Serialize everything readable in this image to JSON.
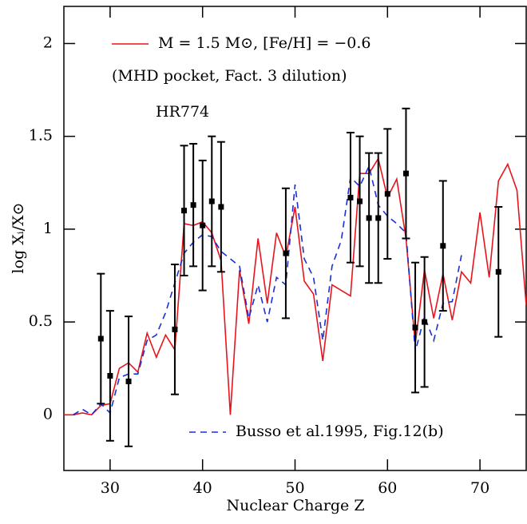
{
  "chart_data": {
    "type": "line",
    "xlabel": "Nuclear Charge Z",
    "ylabel": "log Xᵢ/X⊙",
    "annotations": [
      "(MHD pocket, Fact. 3 dilution)",
      "HR774"
    ],
    "xlim": [
      25,
      75
    ],
    "xticks": [
      30,
      40,
      50,
      60,
      70
    ],
    "ylim": [
      -0.3,
      2.2
    ],
    "yticks": [
      0,
      0.5,
      1,
      1.5,
      2
    ],
    "series": [
      {
        "name": "M = 1.5 M⊙, [Fe/H] = −0.6",
        "color": "#e8141c",
        "dash": false,
        "x": [
          25,
          26,
          27,
          28,
          29,
          30,
          31,
          32,
          33,
          34,
          35,
          36,
          37,
          38,
          39,
          40,
          41,
          42,
          43,
          44,
          45,
          46,
          47,
          48,
          49,
          50,
          51,
          52,
          53,
          54,
          55,
          56,
          57,
          58,
          59,
          60,
          61,
          62,
          63,
          64,
          65,
          66,
          67,
          68,
          69,
          70,
          71,
          72,
          73,
          74,
          75
        ],
        "values": [
          0,
          0,
          0.01,
          0,
          0.05,
          0.06,
          0.25,
          0.28,
          0.23,
          0.44,
          0.31,
          0.43,
          0.35,
          1.03,
          1.02,
          1.04,
          0.98,
          0.83,
          0,
          0.78,
          0.49,
          0.95,
          0.6,
          0.98,
          0.85,
          1.12,
          0.72,
          0.65,
          0.29,
          0.7,
          0.67,
          0.64,
          1.3,
          1.3,
          1.38,
          1.17,
          1.27,
          0.95,
          0.38,
          0.78,
          0.52,
          0.76,
          0.51,
          0.77,
          0.71,
          1.09,
          0.74,
          1.26,
          1.35,
          1.21,
          0.59
        ]
      },
      {
        "name": "Busso et al.1995, Fig.12(b)",
        "color": "#1a2fd6",
        "dash": true,
        "x": [
          26,
          27,
          28,
          29,
          30,
          31,
          32,
          33,
          34,
          35,
          36,
          37,
          38,
          39,
          40,
          41,
          42,
          43,
          44,
          45,
          46,
          47,
          48,
          49,
          50,
          51,
          52,
          53,
          54,
          55,
          56,
          57,
          58,
          59,
          60,
          61,
          62,
          63,
          64,
          65,
          66,
          67,
          68
        ],
        "values": [
          0,
          0.03,
          0,
          0.06,
          0.01,
          0.2,
          0.22,
          0.22,
          0.4,
          0.43,
          0.55,
          0.71,
          0.87,
          0.93,
          0.97,
          0.96,
          0.88,
          0.84,
          0.8,
          0.52,
          0.7,
          0.5,
          0.74,
          0.7,
          1.24,
          0.84,
          0.74,
          0.4,
          0.8,
          0.94,
          1.28,
          1.23,
          1.34,
          1.13,
          1.07,
          1.03,
          0.98,
          0.34,
          0.53,
          0.4,
          0.6,
          0.61,
          0.86
        ]
      }
    ],
    "points": {
      "color": "#000000",
      "x": [
        29,
        30,
        32,
        37,
        38,
        39,
        40,
        41,
        42,
        49,
        56,
        57,
        58,
        59,
        60,
        62,
        63,
        64,
        66,
        72
      ],
      "values": [
        0.41,
        0.21,
        0.18,
        0.46,
        1.1,
        1.13,
        1.02,
        1.15,
        1.12,
        0.87,
        1.17,
        1.15,
        1.06,
        1.06,
        1.19,
        1.3,
        0.47,
        0.5,
        0.91,
        0.77
      ],
      "errors": [
        0.35,
        0.35,
        0.35,
        0.35,
        0.35,
        0.33,
        0.35,
        0.35,
        0.35,
        0.35,
        0.35,
        0.35,
        0.35,
        0.35,
        0.35,
        0.35,
        0.35,
        0.35,
        0.35,
        0.35
      ]
    }
  }
}
